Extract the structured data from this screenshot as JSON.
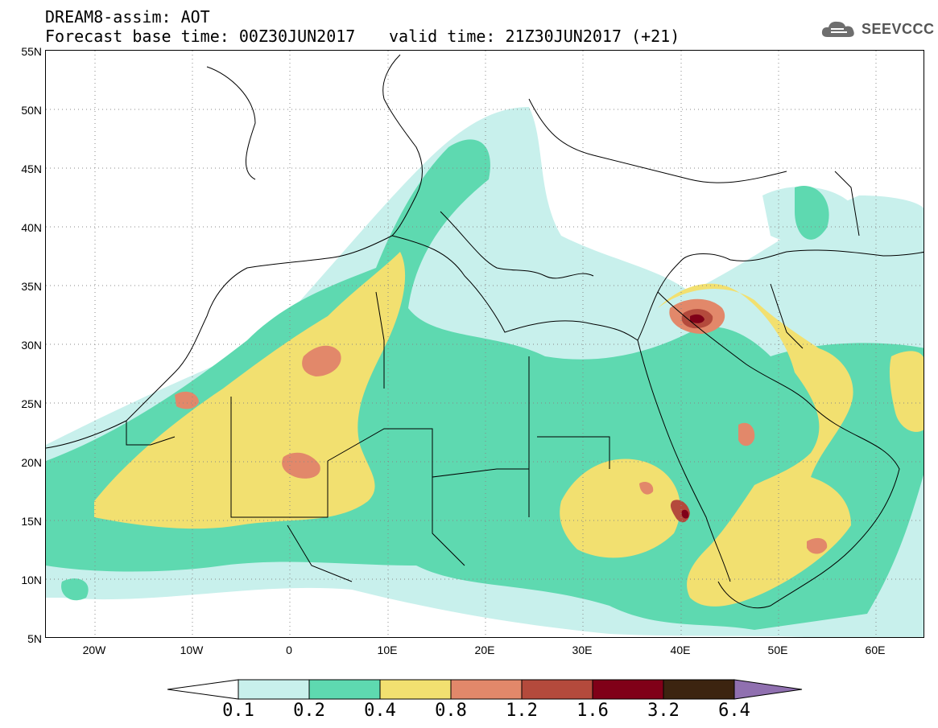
{
  "header": {
    "title": "DREAM8-assim: AOT",
    "forecast_base": "Forecast base time: 00Z30JUN2017",
    "valid_time": "valid time: 21Z30JUN2017 (+21)",
    "logo_text": "SEEVCCC",
    "logo_icon": "cloud-icon"
  },
  "map": {
    "lat_range": [
      5,
      55
    ],
    "lon_range": [
      -25,
      65
    ],
    "lat_labels": [
      "55N",
      "50N",
      "45N",
      "40N",
      "35N",
      "30N",
      "25N",
      "20N",
      "15N",
      "10N",
      "5N"
    ],
    "lon_labels": [
      "20W",
      "10W",
      "0",
      "10E",
      "20E",
      "30E",
      "40E",
      "50E",
      "60E"
    ],
    "grid": true
  },
  "colorbar": {
    "colors": [
      "#c8f0ec",
      "#5ed9b0",
      "#f2e070",
      "#e2886a",
      "#b44a3c",
      "#800018",
      "#3c2410",
      "#9070b0"
    ],
    "labels": [
      "0.1",
      "0.2",
      "0.4",
      "0.8",
      "1.2",
      "1.6",
      "3.2",
      "6.4"
    ]
  }
}
